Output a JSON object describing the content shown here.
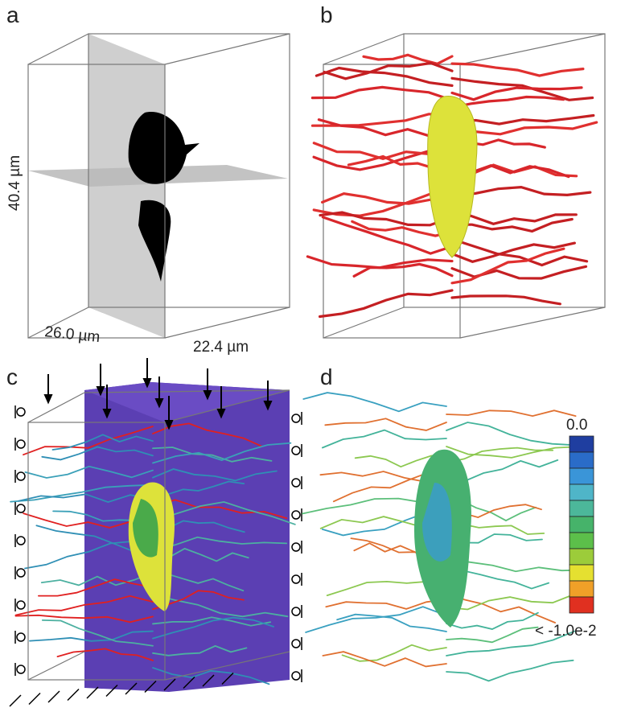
{
  "panels": [
    {
      "label": "a",
      "annotations": [
        "40.4 µm",
        "26.0 µm",
        "22.4 µm"
      ]
    },
    {
      "label": "b"
    },
    {
      "label": "c"
    },
    {
      "label": "d",
      "colorbar": {
        "top_label": "0.0",
        "bottom_label": "< -1.0e-2"
      }
    }
  ]
}
